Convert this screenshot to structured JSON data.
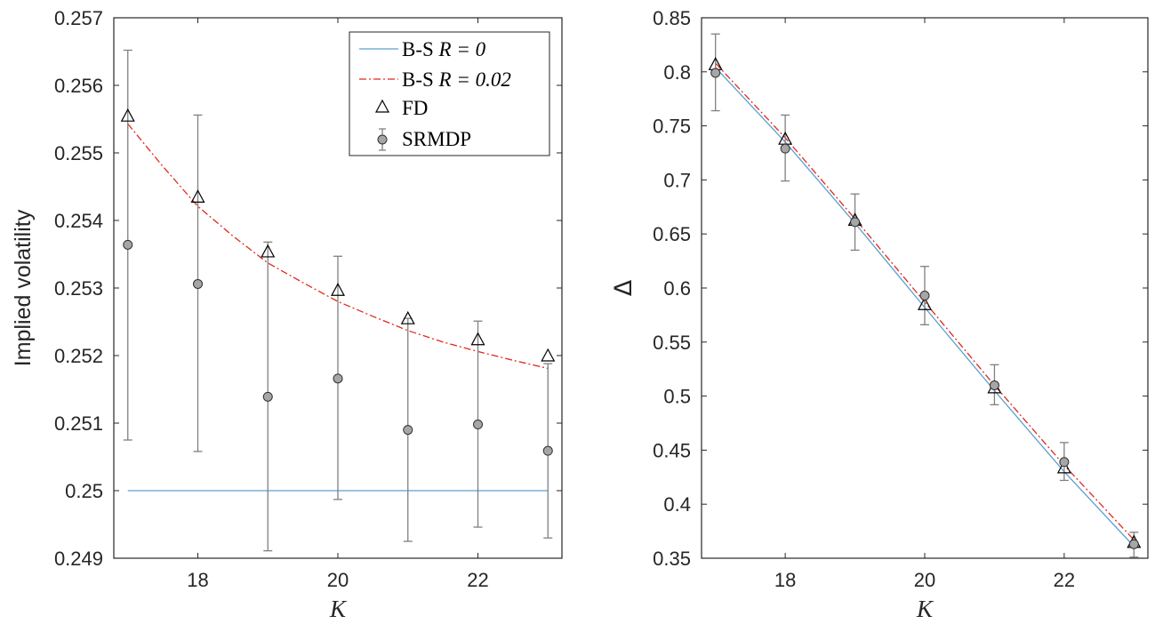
{
  "colors": {
    "bs_r0": "#5aa0d2",
    "bs_r002": "#e0291d",
    "fd": "#000000",
    "srmdp_fill": "#a6a6a6",
    "srmdp_err": "#808080",
    "axes": "#262626"
  },
  "chart_data": [
    {
      "type": "line",
      "xlabel": "K",
      "ylabel": "Implied volatility",
      "xlim": [
        16.8,
        23.2
      ],
      "ylim": [
        0.249,
        0.257
      ],
      "xticks": [
        18,
        20,
        22
      ],
      "xtick_labels": [
        "18",
        "20",
        "22"
      ],
      "yticks": [
        0.249,
        0.25,
        0.251,
        0.252,
        0.253,
        0.254,
        0.255,
        0.256,
        0.257
      ],
      "ytick_labels": [
        "0.249",
        "0.25",
        "0.251",
        "0.252",
        "0.253",
        "0.254",
        "0.255",
        "0.256",
        "0.257"
      ],
      "grid": false,
      "legend_position": "top-right",
      "legend": [
        {
          "text": "B-S ",
          "math": "R = 0",
          "style": "solid-line",
          "color": "#5aa0d2"
        },
        {
          "text": "B-S ",
          "math": "R = 0.02",
          "style": "dash-dot-line",
          "color": "#e0291d"
        },
        {
          "text": "FD",
          "math": "",
          "style": "triangle-marker",
          "color": "#000000"
        },
        {
          "text": "SRMDP",
          "math": "",
          "style": "circle-errorbar",
          "color": "#808080"
        }
      ],
      "series": [
        {
          "name": "B-S R = 0",
          "kind": "line",
          "x": [
            17,
            23
          ],
          "y": [
            0.25,
            0.25
          ]
        },
        {
          "name": "B-S R = 0.02",
          "kind": "dashdot",
          "x": [
            17,
            17.5,
            18,
            18.5,
            19,
            19.5,
            20,
            20.5,
            21,
            21.5,
            22,
            22.5,
            23
          ],
          "y": [
            0.25543,
            0.2548,
            0.25421,
            0.25377,
            0.25337,
            0.25308,
            0.2528,
            0.25258,
            0.25237,
            0.2522,
            0.25206,
            0.25193,
            0.25181
          ]
        },
        {
          "name": "FD",
          "kind": "triangle",
          "x": [
            17,
            18,
            19,
            20,
            21,
            22,
            23
          ],
          "y": [
            0.25555,
            0.25435,
            0.25354,
            0.25297,
            0.25255,
            0.25224,
            0.252
          ]
        },
        {
          "name": "SRMDP",
          "kind": "circle-errorbar",
          "x": [
            17,
            18,
            19,
            20,
            21,
            22,
            23
          ],
          "y": [
            0.25364,
            0.25306,
            0.25139,
            0.25166,
            0.2509,
            0.25098,
            0.25059
          ],
          "lower": [
            0.25075,
            0.25058,
            0.24911,
            0.24987,
            0.24925,
            0.24946,
            0.2493
          ],
          "upper": [
            0.25652,
            0.25556,
            0.25368,
            0.25347,
            0.25255,
            0.25251,
            0.25188
          ]
        }
      ]
    },
    {
      "type": "line",
      "xlabel": "K",
      "ylabel": "Δ",
      "xlim": [
        16.8,
        23.2
      ],
      "ylim": [
        0.35,
        0.85
      ],
      "xticks": [
        18,
        20,
        22
      ],
      "xtick_labels": [
        "18",
        "20",
        "22"
      ],
      "yticks": [
        0.35,
        0.4,
        0.45,
        0.5,
        0.55,
        0.6,
        0.65,
        0.7,
        0.75,
        0.8,
        0.85
      ],
      "ytick_labels": [
        "0.35",
        "0.4",
        "0.45",
        "0.5",
        "0.55",
        "0.6",
        "0.65",
        "0.7",
        "0.75",
        "0.8",
        "0.85"
      ],
      "grid": false,
      "series": [
        {
          "name": "B-S R = 0",
          "kind": "line",
          "x": [
            17,
            18,
            19,
            20,
            21,
            22,
            23
          ],
          "y": [
            0.804,
            0.735,
            0.66,
            0.582,
            0.505,
            0.43,
            0.361
          ]
        },
        {
          "name": "B-S R = 0.02",
          "kind": "dashdot",
          "x": [
            17,
            18,
            19,
            20,
            21,
            22,
            23
          ],
          "y": [
            0.808,
            0.739,
            0.664,
            0.587,
            0.51,
            0.436,
            0.367
          ]
        },
        {
          "name": "FD",
          "kind": "triangle",
          "x": [
            17,
            18,
            19,
            20,
            21,
            22,
            23
          ],
          "y": [
            0.807,
            0.738,
            0.663,
            0.585,
            0.508,
            0.434,
            0.365
          ]
        },
        {
          "name": "SRMDP",
          "kind": "circle-errorbar",
          "x": [
            17,
            18,
            19,
            20,
            21,
            22,
            23
          ],
          "y": [
            0.799,
            0.729,
            0.661,
            0.593,
            0.51,
            0.439,
            0.363
          ],
          "lower": [
            0.764,
            0.699,
            0.635,
            0.566,
            0.492,
            0.422,
            0.351
          ],
          "upper": [
            0.835,
            0.76,
            0.687,
            0.62,
            0.529,
            0.457,
            0.374
          ]
        }
      ]
    }
  ]
}
